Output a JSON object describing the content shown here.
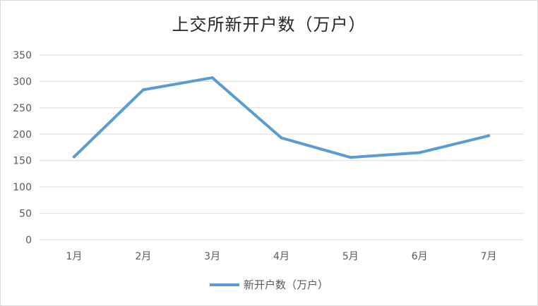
{
  "chart_data": {
    "type": "line",
    "title": "上交所新开户数（万户）",
    "categories": [
      "1月",
      "2月",
      "3月",
      "4月",
      "5月",
      "6月",
      "7月"
    ],
    "series": [
      {
        "name": "新开户数（万户）",
        "values": [
          157,
          284,
          307,
          193,
          156,
          165,
          197
        ],
        "color": "#5b9bd5"
      }
    ],
    "ylim": [
      0,
      350
    ],
    "yticks": [
      0,
      50,
      100,
      150,
      200,
      250,
      300,
      350
    ],
    "grid": true,
    "legend": "bottom"
  }
}
